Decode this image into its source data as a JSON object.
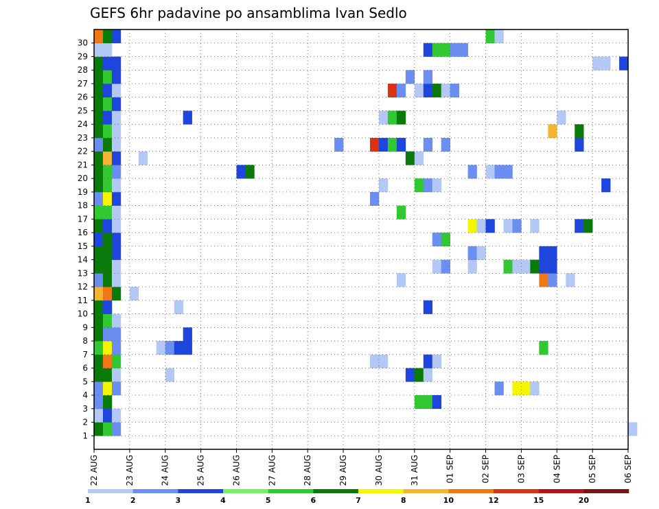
{
  "chart_data": {
    "type": "heatmap",
    "title": "GEFS 6hr padavine po ansamblima Ivan Sedlo",
    "y_ticks": [
      "1",
      "2",
      "3",
      "4",
      "5",
      "6",
      "7",
      "8",
      "9",
      "10",
      "11",
      "12",
      "13",
      "14",
      "15",
      "16",
      "17",
      "18",
      "19",
      "20",
      "21",
      "22",
      "23",
      "24",
      "25",
      "26",
      "27",
      "28",
      "29",
      "30"
    ],
    "x_ticks": [
      "22 AUG",
      "23 AUG",
      "24 AUG",
      "25 AUG",
      "26 AUG",
      "27 AUG",
      "28 AUG",
      "29 AUG",
      "30 AUG",
      "31 AUG",
      "01 SEP",
      "02 SEP",
      "03 SEP",
      "04 SEP",
      "05 SEP",
      "06 SEP"
    ],
    "time_step": "6hr",
    "grid": "dotted",
    "colorbar": {
      "labels": [
        "1",
        "2",
        "3",
        "4",
        "5",
        "6",
        "7",
        "8",
        "10",
        "12",
        "15",
        "20"
      ],
      "colors": [
        "#b4c8f5",
        "#6a8ff0",
        "#1e46dc",
        "#78f064",
        "#32c832",
        "#0a7a0a",
        "#f5f500",
        "#f5b432",
        "#f07814",
        "#dc3214",
        "#b41414",
        "#781414"
      ]
    },
    "levels": [
      1,
      2,
      3,
      4,
      5,
      6,
      7,
      8,
      10,
      12,
      15,
      20
    ],
    "cells": [
      [
        1,
        0,
        6
      ],
      [
        1,
        1,
        5
      ],
      [
        1,
        2,
        2
      ],
      [
        1,
        60,
        1
      ],
      [
        2,
        0,
        1
      ],
      [
        2,
        1,
        3
      ],
      [
        2,
        2,
        1
      ],
      [
        3,
        0,
        2
      ],
      [
        3,
        1,
        6
      ],
      [
        3,
        36,
        5
      ],
      [
        3,
        37,
        5
      ],
      [
        3,
        38,
        3
      ],
      [
        4,
        0,
        2
      ],
      [
        4,
        1,
        7
      ],
      [
        4,
        2,
        2
      ],
      [
        4,
        45,
        2
      ],
      [
        4,
        47,
        7
      ],
      [
        4,
        48,
        7
      ],
      [
        4,
        49,
        1
      ],
      [
        5,
        0,
        6
      ],
      [
        5,
        1,
        6
      ],
      [
        5,
        2,
        1
      ],
      [
        5,
        8,
        1
      ],
      [
        5,
        35,
        3
      ],
      [
        5,
        36,
        6
      ],
      [
        5,
        37,
        1
      ],
      [
        6,
        0,
        6
      ],
      [
        6,
        1,
        9
      ],
      [
        6,
        2,
        5
      ],
      [
        6,
        31,
        1
      ],
      [
        6,
        32,
        1
      ],
      [
        6,
        37,
        3
      ],
      [
        6,
        38,
        1
      ],
      [
        7,
        0,
        5
      ],
      [
        7,
        1,
        7
      ],
      [
        7,
        2,
        2
      ],
      [
        7,
        7,
        1
      ],
      [
        7,
        8,
        2
      ],
      [
        7,
        9,
        3
      ],
      [
        7,
        10,
        3
      ],
      [
        7,
        50,
        5
      ],
      [
        8,
        0,
        6
      ],
      [
        8,
        1,
        2
      ],
      [
        8,
        2,
        2
      ],
      [
        8,
        10,
        3
      ],
      [
        9,
        0,
        6
      ],
      [
        9,
        1,
        5
      ],
      [
        9,
        2,
        1
      ],
      [
        10,
        0,
        6
      ],
      [
        10,
        1,
        3
      ],
      [
        10,
        9,
        1
      ],
      [
        10,
        37,
        3
      ],
      [
        11,
        0,
        8
      ],
      [
        11,
        1,
        9
      ],
      [
        11,
        2,
        6
      ],
      [
        11,
        4,
        1
      ],
      [
        12,
        0,
        2
      ],
      [
        12,
        1,
        6
      ],
      [
        12,
        2,
        1
      ],
      [
        12,
        34,
        1
      ],
      [
        12,
        50,
        9
      ],
      [
        12,
        51,
        2
      ],
      [
        12,
        53,
        1
      ],
      [
        13,
        0,
        6
      ],
      [
        13,
        1,
        6
      ],
      [
        13,
        2,
        1
      ],
      [
        13,
        38,
        1
      ],
      [
        13,
        39,
        2
      ],
      [
        13,
        42,
        1
      ],
      [
        13,
        46,
        5
      ],
      [
        13,
        47,
        1
      ],
      [
        13,
        48,
        1
      ],
      [
        13,
        49,
        6
      ],
      [
        13,
        50,
        3
      ],
      [
        13,
        51,
        3
      ],
      [
        14,
        0,
        6
      ],
      [
        14,
        1,
        6
      ],
      [
        14,
        2,
        3
      ],
      [
        14,
        42,
        2
      ],
      [
        14,
        43,
        1
      ],
      [
        14,
        50,
        3
      ],
      [
        14,
        51,
        3
      ],
      [
        15,
        0,
        3
      ],
      [
        15,
        1,
        6
      ],
      [
        15,
        2,
        3
      ],
      [
        15,
        38,
        2
      ],
      [
        15,
        39,
        5
      ],
      [
        16,
        0,
        6
      ],
      [
        16,
        1,
        3
      ],
      [
        16,
        2,
        1
      ],
      [
        16,
        42,
        7
      ],
      [
        16,
        43,
        1
      ],
      [
        16,
        44,
        3
      ],
      [
        16,
        46,
        1
      ],
      [
        16,
        47,
        2
      ],
      [
        16,
        49,
        1
      ],
      [
        16,
        54,
        3
      ],
      [
        16,
        55,
        6
      ],
      [
        17,
        0,
        5
      ],
      [
        17,
        1,
        5
      ],
      [
        17,
        2,
        1
      ],
      [
        17,
        34,
        5
      ],
      [
        18,
        0,
        2
      ],
      [
        18,
        1,
        7
      ],
      [
        18,
        2,
        3
      ],
      [
        18,
        31,
        2
      ],
      [
        19,
        0,
        6
      ],
      [
        19,
        1,
        5
      ],
      [
        19,
        2,
        1
      ],
      [
        19,
        32,
        1
      ],
      [
        19,
        36,
        5
      ],
      [
        19,
        37,
        2
      ],
      [
        19,
        38,
        1
      ],
      [
        19,
        57,
        3
      ],
      [
        20,
        0,
        6
      ],
      [
        20,
        1,
        5
      ],
      [
        20,
        2,
        2
      ],
      [
        20,
        16,
        3
      ],
      [
        20,
        17,
        6
      ],
      [
        20,
        42,
        2
      ],
      [
        20,
        44,
        1
      ],
      [
        20,
        45,
        2
      ],
      [
        20,
        46,
        2
      ],
      [
        21,
        0,
        6
      ],
      [
        21,
        1,
        8
      ],
      [
        21,
        2,
        3
      ],
      [
        21,
        5,
        1
      ],
      [
        21,
        35,
        6
      ],
      [
        21,
        36,
        1
      ],
      [
        22,
        0,
        2
      ],
      [
        22,
        1,
        6
      ],
      [
        22,
        2,
        1
      ],
      [
        22,
        27,
        2
      ],
      [
        22,
        31,
        10
      ],
      [
        22,
        32,
        3
      ],
      [
        22,
        33,
        5
      ],
      [
        22,
        34,
        3
      ],
      [
        22,
        37,
        2
      ],
      [
        22,
        39,
        2
      ],
      [
        22,
        54,
        3
      ],
      [
        23,
        0,
        6
      ],
      [
        23,
        1,
        5
      ],
      [
        23,
        2,
        1
      ],
      [
        23,
        51,
        8
      ],
      [
        23,
        54,
        6
      ],
      [
        24,
        0,
        6
      ],
      [
        24,
        1,
        3
      ],
      [
        24,
        2,
        1
      ],
      [
        24,
        10,
        3
      ],
      [
        24,
        32,
        1
      ],
      [
        24,
        33,
        5
      ],
      [
        24,
        34,
        6
      ],
      [
        24,
        52,
        1
      ],
      [
        25,
        0,
        6
      ],
      [
        25,
        1,
        5
      ],
      [
        25,
        2,
        3
      ],
      [
        26,
        0,
        6
      ],
      [
        26,
        1,
        3
      ],
      [
        26,
        2,
        1
      ],
      [
        26,
        33,
        10
      ],
      [
        26,
        34,
        2
      ],
      [
        26,
        36,
        1
      ],
      [
        26,
        37,
        3
      ],
      [
        26,
        38,
        6
      ],
      [
        26,
        39,
        1
      ],
      [
        26,
        40,
        2
      ],
      [
        27,
        0,
        6
      ],
      [
        27,
        1,
        5
      ],
      [
        27,
        2,
        3
      ],
      [
        27,
        35,
        2
      ],
      [
        27,
        37,
        2
      ],
      [
        28,
        0,
        6
      ],
      [
        28,
        1,
        3
      ],
      [
        28,
        2,
        3
      ],
      [
        28,
        56,
        1
      ],
      [
        28,
        57,
        1
      ],
      [
        28,
        59,
        3
      ],
      [
        29,
        0,
        1
      ],
      [
        29,
        1,
        1
      ],
      [
        29,
        37,
        3
      ],
      [
        29,
        38,
        5
      ],
      [
        29,
        39,
        5
      ],
      [
        29,
        40,
        2
      ],
      [
        29,
        41,
        2
      ],
      [
        30,
        0,
        9
      ],
      [
        30,
        1,
        6
      ],
      [
        30,
        2,
        3
      ],
      [
        30,
        44,
        5
      ],
      [
        30,
        45,
        1
      ]
    ]
  }
}
